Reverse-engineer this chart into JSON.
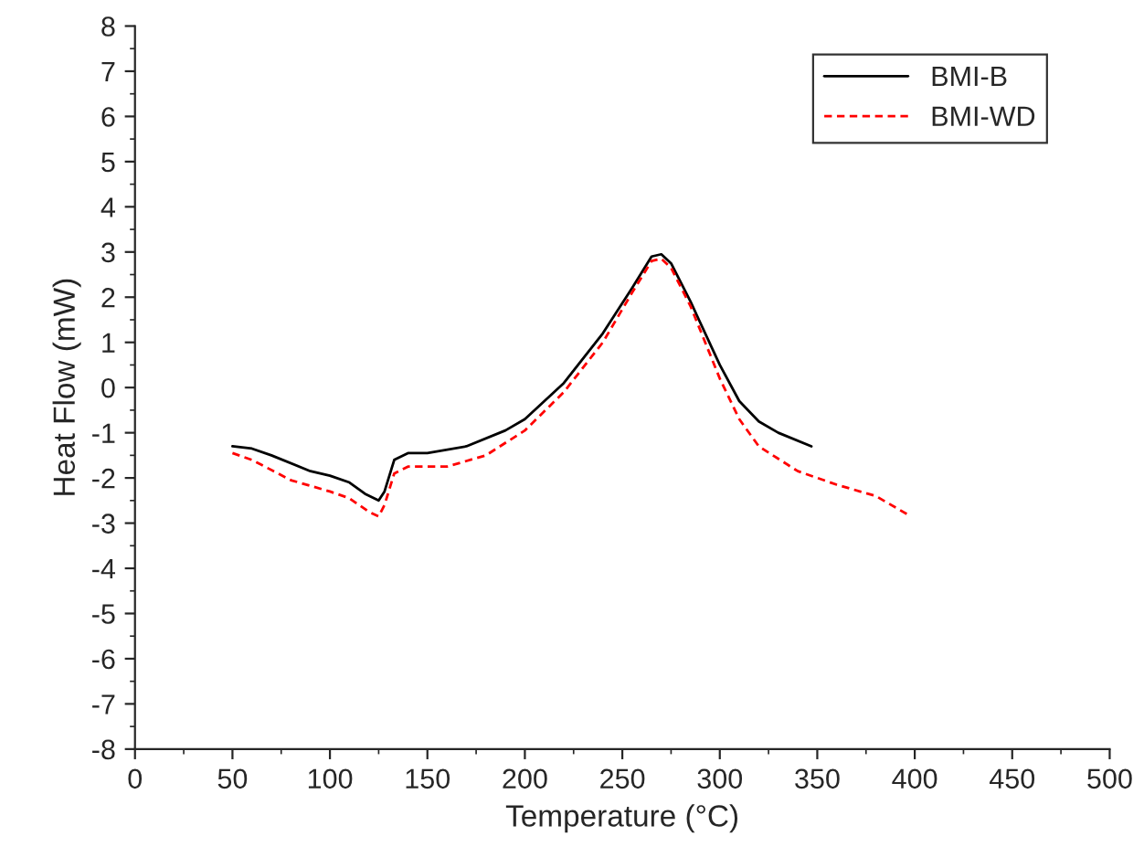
{
  "chart_data": {
    "type": "line",
    "xlabel": "Temperature (°C)",
    "ylabel": "Heat Flow (mW)",
    "xlim": [
      0,
      500
    ],
    "xticks": [
      0,
      50,
      100,
      150,
      200,
      250,
      300,
      350,
      400,
      450,
      500
    ],
    "ylim": [
      -8,
      8
    ],
    "yticks": [
      -8,
      -7,
      -6,
      -5,
      -4,
      -3,
      -2,
      -1,
      0,
      1,
      2,
      3,
      4,
      5,
      6,
      7,
      8
    ],
    "grid": false,
    "legend": "top right",
    "marker": "none",
    "series": [
      {
        "name": "BMI-B",
        "color": "#000000",
        "line_style": "solid",
        "x": [
          50,
          60,
          70,
          90,
          100,
          110,
          118,
          125,
          128,
          133,
          140,
          150,
          170,
          190,
          200,
          220,
          240,
          255,
          265,
          270,
          275,
          285,
          300,
          310,
          320,
          330,
          347
        ],
        "values": [
          -1.3,
          -1.35,
          -1.5,
          -1.85,
          -1.95,
          -2.1,
          -2.35,
          -2.5,
          -2.3,
          -1.6,
          -1.45,
          -1.45,
          -1.3,
          -0.95,
          -0.7,
          0.1,
          1.2,
          2.2,
          2.9,
          2.95,
          2.75,
          1.9,
          0.5,
          -0.3,
          -0.75,
          -1.0,
          -1.3
        ]
      },
      {
        "name": "BMI-WD",
        "color": "#ff0000",
        "line_style": "dashed",
        "x": [
          50,
          60,
          80,
          100,
          110,
          120,
          125,
          128,
          133,
          140,
          160,
          180,
          200,
          220,
          240,
          255,
          265,
          270,
          275,
          285,
          300,
          310,
          320,
          340,
          360,
          380,
          398
        ],
        "values": [
          -1.45,
          -1.6,
          -2.05,
          -2.3,
          -2.45,
          -2.75,
          -2.85,
          -2.6,
          -1.9,
          -1.75,
          -1.75,
          -1.5,
          -0.95,
          -0.1,
          1.0,
          2.1,
          2.8,
          2.85,
          2.65,
          1.8,
          0.2,
          -0.7,
          -1.3,
          -1.85,
          -2.15,
          -2.4,
          -2.85
        ]
      }
    ]
  }
}
